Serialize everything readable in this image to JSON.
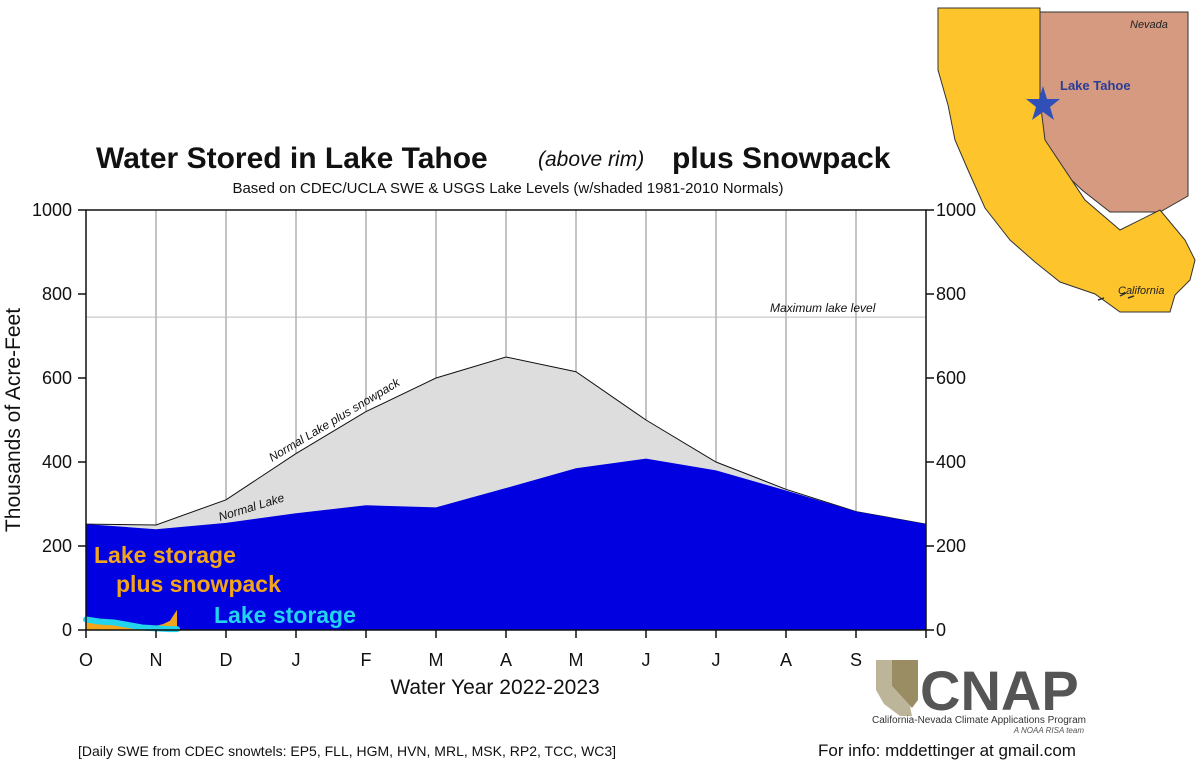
{
  "chart_data": {
    "type": "area",
    "title": "Water Stored in Lake Tahoe",
    "title_italic": "(above rim)",
    "title_end": "plus Snowpack",
    "subtitle": "Based on CDEC/UCLA SWE & USGS Lake Levels (w/shaded 1981-2010 Normals)",
    "xlabel": "Water Year 2022-2023",
    "ylabel": "Thousands of Acre-Feet",
    "ylim": [
      0,
      1000
    ],
    "yticks": [
      "0",
      "200",
      "400",
      "600",
      "800",
      "1000"
    ],
    "yticks_right": [
      "0",
      "200",
      "400",
      "600",
      "800",
      "1000"
    ],
    "months": [
      "O",
      "N",
      "D",
      "J",
      "F",
      "M",
      "A",
      "M",
      "J",
      "J",
      "A",
      "S"
    ],
    "grid": true,
    "max_lake_level": 745,
    "max_lake_label": "Maximum lake level",
    "normal_lake_label": "Normal Lake",
    "normal_total_label": "Normal Lake plus snowpack",
    "series": [
      {
        "name": "Normal Lake plus snowpack",
        "color": "#dddddd",
        "x": [
          0,
          1,
          2,
          3,
          4,
          5,
          6,
          7,
          8,
          9,
          10,
          11,
          12
        ],
        "values": [
          252,
          250,
          310,
          420,
          520,
          600,
          650,
          615,
          500,
          400,
          335,
          282,
          252
        ]
      },
      {
        "name": "Normal Lake",
        "color": "#0000e0",
        "x": [
          0,
          1,
          2,
          3,
          4,
          5,
          6,
          7,
          8,
          9,
          10,
          11,
          12
        ],
        "values": [
          252,
          240,
          255,
          278,
          297,
          292,
          338,
          385,
          408,
          380,
          332,
          282,
          252
        ]
      },
      {
        "name": "Lake storage plus snowpack",
        "color": "#f2a51a",
        "x": [
          0,
          0.2,
          0.4,
          0.6,
          0.8,
          1.0,
          1.1,
          1.2,
          1.25,
          1.3
        ],
        "values": [
          25,
          20,
          18,
          12,
          8,
          10,
          14,
          22,
          35,
          48
        ]
      },
      {
        "name": "Lake storage",
        "color": "#22d3ee",
        "x": [
          0,
          0.2,
          0.4,
          0.6,
          0.8,
          1.0,
          1.2,
          1.3
        ],
        "values": [
          25,
          20,
          18,
          12,
          6,
          4,
          2,
          2
        ]
      }
    ],
    "legend_items": [
      {
        "line1": "Lake storage",
        "line2": "plus snowpack",
        "color": "#f2a51a"
      },
      {
        "line1": "Lake storage",
        "color": "#22d3ee"
      }
    ]
  },
  "footnote": "[Daily SWE from CDEC snowtels: EP5, FLL, HGM, HVN, MRL, MSK, RP2, TCC, WC3]",
  "info": "For info: mddettinger at gmail.com",
  "map": {
    "nevada_label": "Nevada",
    "california_label": "California",
    "lake_label": "Lake Tahoe",
    "colors": {
      "california": "#fdc52b",
      "nevada": "#d59a7f",
      "star": "#3050b8"
    }
  },
  "logo": {
    "name": "CNAP",
    "subtitle": "California-Nevada Climate Applications Program",
    "subtitle2": "A NOAA RISA team"
  }
}
